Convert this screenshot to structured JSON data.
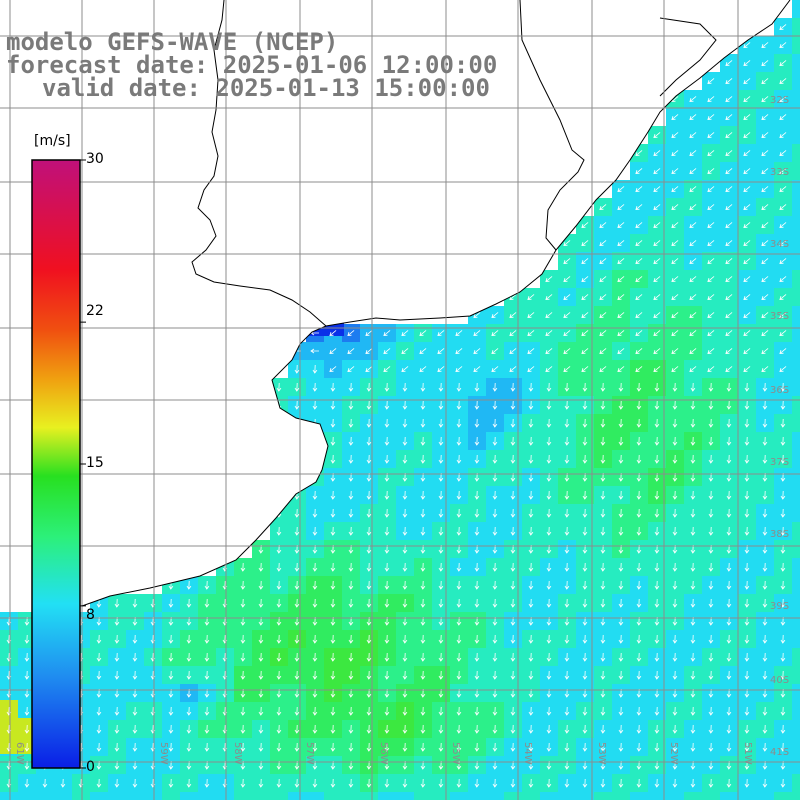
{
  "title": {
    "line1": "modelo GEFS-WAVE (NCEP)",
    "line2": "forecast date: 2025-01-06 12:00:00",
    "line3": "valid date: 2025-01-13 15:00:00"
  },
  "colorbar": {
    "units": "[m/s]",
    "ticks": [
      {
        "label": "30",
        "value": 30
      },
      {
        "label": "22",
        "value": 22
      },
      {
        "label": "15",
        "value": 15
      },
      {
        "label": "8",
        "value": 8
      },
      {
        "label": "0",
        "value": 0
      }
    ],
    "min": 0,
    "max": 30
  },
  "map": {
    "lat_labels": [
      "32S",
      "33S",
      "34S",
      "35S",
      "36S",
      "37S",
      "38S",
      "39S",
      "40S",
      "41S"
    ],
    "lon_labels": [
      "61W",
      "59W",
      "58W",
      "57W",
      "56W",
      "55W",
      "54W",
      "53W",
      "52W",
      "51W"
    ],
    "colors": {
      "ocean_low": "#1a5cf0",
      "ocean_mid": "#22d4f4",
      "ocean_high": "#2ee86a",
      "land": "#ffffff",
      "coastline": "#000000",
      "grid": "#8c8c8c",
      "arrows": "#ffffff"
    }
  }
}
